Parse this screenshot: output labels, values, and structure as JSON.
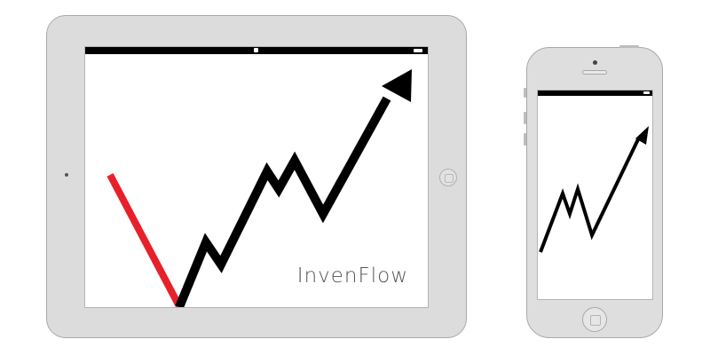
{
  "tablet": {
    "brand_text": "InvenFlow"
  },
  "icons": {
    "tablet_lock": "lock-icon",
    "tablet_battery": "battery-icon",
    "phone_battery": "battery-icon"
  },
  "colors": {
    "decline_line": "#e8202a",
    "growth_line": "#000000",
    "device_body": "#dcdcdc",
    "device_border": "#a9a9a9",
    "statusbar": "#000000",
    "brand_text": "#555555"
  }
}
